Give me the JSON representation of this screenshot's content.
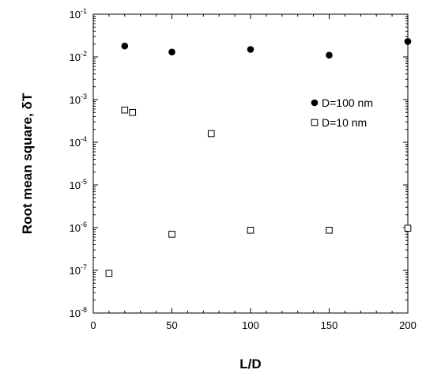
{
  "chart_data": {
    "type": "scatter",
    "xlabel": "L/D",
    "ylabel": "Root mean square, δT",
    "xlim": [
      0,
      200
    ],
    "ylim": [
      1e-08,
      0.1
    ],
    "yscale": "log",
    "xticks": [
      0,
      50,
      100,
      150,
      200
    ],
    "yticks": [
      {
        "value": 1e-08,
        "base": "10",
        "exp": "-8"
      },
      {
        "value": 1e-07,
        "base": "10",
        "exp": "-7"
      },
      {
        "value": 1e-06,
        "base": "10",
        "exp": "-6"
      },
      {
        "value": 1e-05,
        "base": "10",
        "exp": "-5"
      },
      {
        "value": 0.0001,
        "base": "10",
        "exp": "-4"
      },
      {
        "value": 0.001,
        "base": "10",
        "exp": "-3"
      },
      {
        "value": 0.01,
        "base": "10",
        "exp": "-2"
      },
      {
        "value": 0.1,
        "base": "10",
        "exp": "-1"
      }
    ],
    "grid": false,
    "legend_position": "upper-right",
    "series": [
      {
        "name": "D=100 nm",
        "marker": "filled-circle",
        "color": "#000000",
        "points": [
          {
            "x": 20,
            "y": 0.018
          },
          {
            "x": 50,
            "y": 0.013
          },
          {
            "x": 100,
            "y": 0.015
          },
          {
            "x": 150,
            "y": 0.011
          },
          {
            "x": 200,
            "y": 0.023
          }
        ]
      },
      {
        "name": "D=10 nm",
        "marker": "open-square",
        "color": "#000000",
        "points": [
          {
            "x": 10,
            "y": 8.5e-08
          },
          {
            "x": 20,
            "y": 0.00057
          },
          {
            "x": 25,
            "y": 0.0005
          },
          {
            "x": 50,
            "y": 7e-07
          },
          {
            "x": 75,
            "y": 0.00016
          },
          {
            "x": 100,
            "y": 8.7e-07
          },
          {
            "x": 150,
            "y": 8.7e-07
          },
          {
            "x": 200,
            "y": 9.7e-07
          }
        ]
      }
    ]
  }
}
